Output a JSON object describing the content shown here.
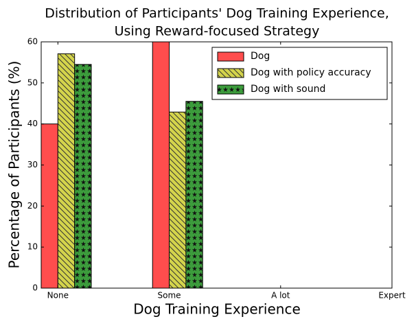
{
  "chart_data": {
    "type": "bar",
    "title": [
      "Distribution of Participants' Dog Training Experience,",
      "Using Reward-focused Strategy"
    ],
    "xlabel": "Dog Training Experience",
    "ylabel": "Percentage of Participants (%)",
    "categories": [
      "None",
      "Some",
      "A lot",
      "Expert"
    ],
    "series": [
      {
        "name": "Dog",
        "color": "#ff4d4d",
        "hatch": "none",
        "values": [
          40,
          60,
          0,
          0
        ]
      },
      {
        "name": "Dog with policy accuracy",
        "color": "#d4d44c",
        "hatch": "diagonal",
        "values": [
          57.1,
          42.9,
          0,
          0
        ]
      },
      {
        "name": "Dog with sound",
        "color": "#3c9c3c",
        "hatch": "stars",
        "values": [
          54.5,
          45.5,
          0,
          0
        ]
      }
    ],
    "ylim": [
      0,
      60
    ],
    "yticks": [
      0,
      10,
      20,
      30,
      40,
      50,
      60
    ],
    "grid": false,
    "legend": "upper right"
  }
}
